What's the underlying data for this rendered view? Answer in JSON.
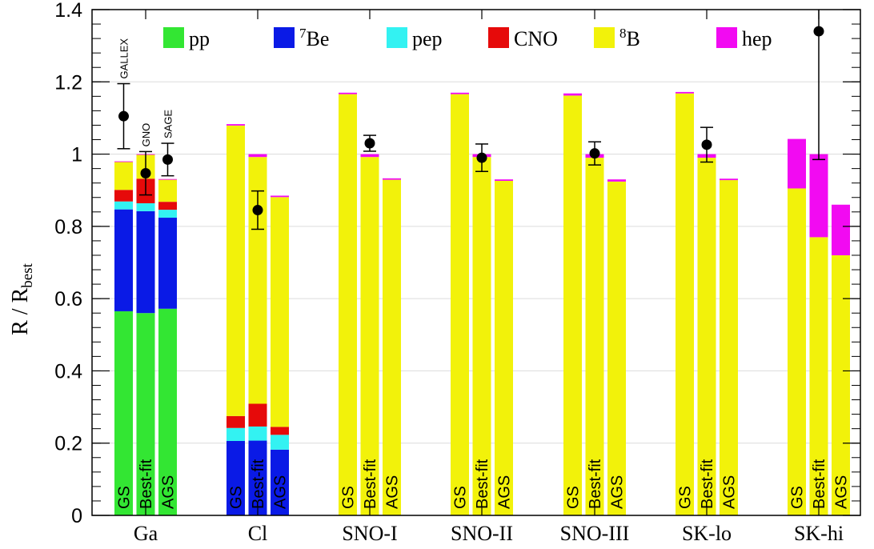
{
  "chart_data": {
    "type": "bar",
    "stacked": true,
    "ylabel": "R / R",
    "ylabel_subscript": "best",
    "ylim": [
      0,
      1.4
    ],
    "yticks": [
      "0",
      "0.2",
      "0.4",
      "0.6",
      "0.8",
      "1",
      "1.2",
      "1.4"
    ],
    "ytick_values": [
      0,
      0.2,
      0.4,
      0.6,
      0.8,
      1.0,
      1.2,
      1.4
    ],
    "grid": "horizontal",
    "legend_placement": "top",
    "components": [
      {
        "key": "pp",
        "label": "pp",
        "sup": "",
        "color": "#33e633"
      },
      {
        "key": "be7",
        "label": "Be",
        "sup": "7",
        "color": "#0a1ae6"
      },
      {
        "key": "pep",
        "label": "pep",
        "sup": "",
        "color": "#33f2f2"
      },
      {
        "key": "cno",
        "label": "CNO",
        "sup": "",
        "color": "#e60a0a"
      },
      {
        "key": "b8",
        "label": "B",
        "sup": "8",
        "color": "#f2f20a"
      },
      {
        "key": "hep",
        "label": "hep",
        "sup": "",
        "color": "#f20af2"
      }
    ],
    "bar_labels": [
      "GS",
      "Best-fit",
      "AGS"
    ],
    "groups": [
      {
        "name": "Ga",
        "bars": [
          {
            "pp": 0.565,
            "be7": 0.282,
            "pep": 0.022,
            "cno": 0.032,
            "b8": 0.077,
            "hep": 0.002
          },
          {
            "pp": 0.56,
            "be7": 0.282,
            "pep": 0.022,
            "cno": 0.068,
            "b8": 0.066,
            "hep": 0.002
          },
          {
            "pp": 0.572,
            "be7": 0.252,
            "pep": 0.022,
            "cno": 0.022,
            "b8": 0.061,
            "hep": 0.002
          }
        ],
        "measurements": [
          {
            "label": "GALLEX",
            "bar": 0,
            "value": 1.105,
            "err_up": 0.09,
            "err_down": 0.09
          },
          {
            "label": "GNO",
            "bar": 1,
            "value": 0.947,
            "err_up": 0.06,
            "err_down": 0.06
          },
          {
            "label": "SAGE",
            "bar": 2,
            "value": 0.985,
            "err_up": 0.045,
            "err_down": 0.045
          }
        ]
      },
      {
        "name": "Cl",
        "bars": [
          {
            "pp": 0,
            "be7": 0.206,
            "pep": 0.036,
            "cno": 0.033,
            "b8": 0.804,
            "hep": 0.004
          },
          {
            "pp": 0,
            "be7": 0.207,
            "pep": 0.039,
            "cno": 0.063,
            "b8": 0.683,
            "hep": 0.008
          },
          {
            "pp": 0,
            "be7": 0.182,
            "pep": 0.041,
            "cno": 0.022,
            "b8": 0.636,
            "hep": 0.004
          }
        ],
        "measurements": [
          {
            "label": "",
            "bar": 1,
            "value": 0.845,
            "err_up": 0.053,
            "err_down": 0.053
          }
        ]
      },
      {
        "name": "SNO-I",
        "bars": [
          {
            "pp": 0,
            "be7": 0,
            "pep": 0,
            "cno": 0,
            "b8": 1.166,
            "hep": 0.004
          },
          {
            "pp": 0,
            "be7": 0,
            "pep": 0,
            "cno": 0,
            "b8": 0.992,
            "hep": 0.008
          },
          {
            "pp": 0,
            "be7": 0,
            "pep": 0,
            "cno": 0,
            "b8": 0.929,
            "hep": 0.004
          }
        ],
        "measurements": [
          {
            "label": "",
            "bar": 1,
            "value": 1.03,
            "err_up": 0.022,
            "err_down": 0.022
          }
        ]
      },
      {
        "name": "SNO-II",
        "bars": [
          {
            "pp": 0,
            "be7": 0,
            "pep": 0,
            "cno": 0,
            "b8": 1.166,
            "hep": 0.004
          },
          {
            "pp": 0,
            "be7": 0,
            "pep": 0,
            "cno": 0,
            "b8": 0.992,
            "hep": 0.008
          },
          {
            "pp": 0,
            "be7": 0,
            "pep": 0,
            "cno": 0,
            "b8": 0.926,
            "hep": 0.004
          }
        ],
        "measurements": [
          {
            "label": "",
            "bar": 1,
            "value": 0.99,
            "err_up": 0.038,
            "err_down": 0.038
          }
        ]
      },
      {
        "name": "SNO-III",
        "bars": [
          {
            "pp": 0,
            "be7": 0,
            "pep": 0,
            "cno": 0,
            "b8": 1.162,
            "hep": 0.006
          },
          {
            "pp": 0,
            "be7": 0,
            "pep": 0,
            "cno": 0,
            "b8": 0.99,
            "hep": 0.01
          },
          {
            "pp": 0,
            "be7": 0,
            "pep": 0,
            "cno": 0,
            "b8": 0.924,
            "hep": 0.006
          }
        ],
        "measurements": [
          {
            "label": "",
            "bar": 1,
            "value": 1.002,
            "err_up": 0.032,
            "err_down": 0.032
          }
        ]
      },
      {
        "name": "SK-lo",
        "bars": [
          {
            "pp": 0,
            "be7": 0,
            "pep": 0,
            "cno": 0,
            "b8": 1.168,
            "hep": 0.004
          },
          {
            "pp": 0,
            "be7": 0,
            "pep": 0,
            "cno": 0,
            "b8": 0.99,
            "hep": 0.01
          },
          {
            "pp": 0,
            "be7": 0,
            "pep": 0,
            "cno": 0,
            "b8": 0.928,
            "hep": 0.004
          }
        ],
        "measurements": [
          {
            "label": "",
            "bar": 1,
            "value": 1.026,
            "err_up": 0.048,
            "err_down": 0.048
          }
        ]
      },
      {
        "name": "SK-hi",
        "bars": [
          {
            "pp": 0,
            "be7": 0,
            "pep": 0,
            "cno": 0,
            "b8": 0.905,
            "hep": 0.137
          },
          {
            "pp": 0,
            "be7": 0,
            "pep": 0,
            "cno": 0,
            "b8": 0.77,
            "hep": 0.23
          },
          {
            "pp": 0,
            "be7": 0,
            "pep": 0,
            "cno": 0,
            "b8": 0.72,
            "hep": 0.14
          }
        ],
        "measurements": [
          {
            "label": "",
            "bar": 1,
            "value": 1.34,
            "err_up": 0.36,
            "err_down": 0.355
          }
        ]
      }
    ]
  }
}
